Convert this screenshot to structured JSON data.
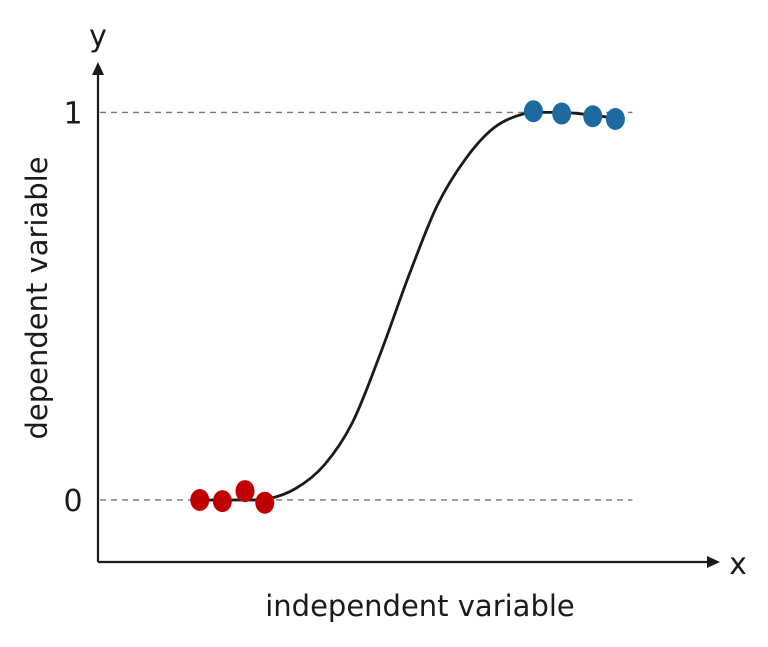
{
  "chart_data": {
    "type": "scatter",
    "title": "",
    "xlabel": "independent variable",
    "ylabel": "dependent variable",
    "x_axis_letter": "x",
    "y_axis_letter": "y",
    "y_ticks": [
      {
        "value": 0,
        "label": "0"
      },
      {
        "value": 1,
        "label": "1"
      }
    ],
    "reference_lines": [
      0,
      1
    ],
    "grid": false,
    "legend": "none",
    "series": [
      {
        "color": "#c00000",
        "points": [
          {
            "x": 1.8,
            "y": 0.0
          },
          {
            "x": 2.2,
            "y": -0.003
          },
          {
            "x": 2.6,
            "y": 0.023
          },
          {
            "x": 2.95,
            "y": -0.007
          }
        ]
      },
      {
        "color": "#1c6aa0",
        "points": [
          {
            "x": 7.7,
            "y": 1.003
          },
          {
            "x": 8.2,
            "y": 0.997
          },
          {
            "x": 8.75,
            "y": 0.99
          },
          {
            "x": 9.15,
            "y": 0.983
          }
        ]
      }
    ],
    "curve": {
      "type": "logistic",
      "color": "#1a1a1a",
      "points": [
        {
          "x": 1.8,
          "y": 0.0
        },
        {
          "x": 2.4,
          "y": 0.0
        },
        {
          "x": 3.0,
          "y": 0.003
        },
        {
          "x": 3.5,
          "y": 0.03
        },
        {
          "x": 4.0,
          "y": 0.09
        },
        {
          "x": 4.5,
          "y": 0.2
        },
        {
          "x": 5.0,
          "y": 0.38
        },
        {
          "x": 5.5,
          "y": 0.58
        },
        {
          "x": 6.0,
          "y": 0.76
        },
        {
          "x": 6.5,
          "y": 0.88
        },
        {
          "x": 7.0,
          "y": 0.96
        },
        {
          "x": 7.5,
          "y": 0.995
        },
        {
          "x": 8.0,
          "y": 1.0
        },
        {
          "x": 8.5,
          "y": 0.997
        },
        {
          "x": 9.15,
          "y": 0.985
        }
      ]
    },
    "xlim": [
      0,
      11
    ],
    "ylim": [
      -0.16,
      1.13
    ],
    "axis_color": "#1a1a1a",
    "reference_line_color": "#777777"
  }
}
